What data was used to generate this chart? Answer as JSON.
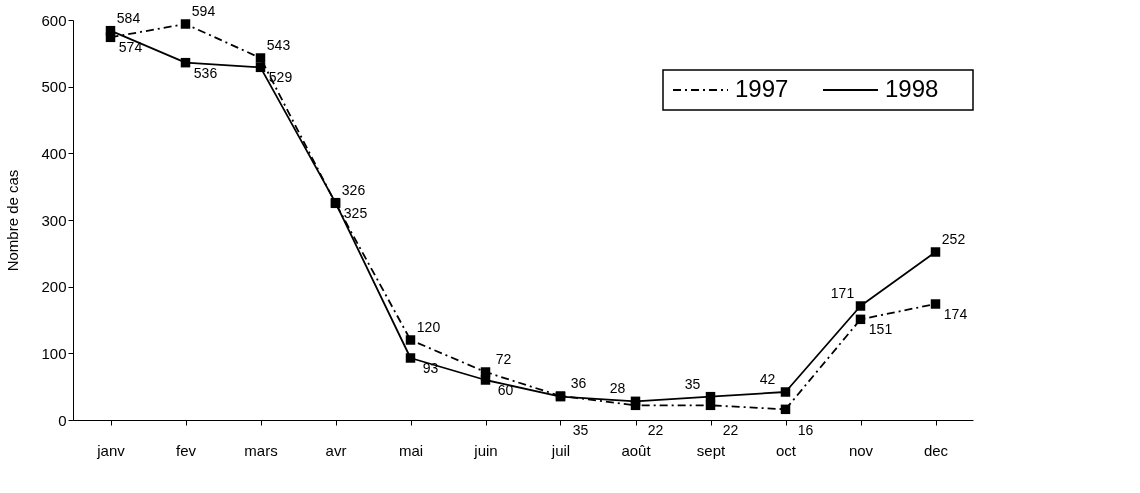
{
  "chart_data": {
    "type": "line",
    "ylabel": "Nombre de cas",
    "categories": [
      "janv",
      "fev",
      "mars",
      "avr",
      "mai",
      "juin",
      "juil",
      "août",
      "sept",
      "oct",
      "nov",
      "dec"
    ],
    "series": [
      {
        "name": "1997",
        "color": "#000000",
        "line_style": "dashed",
        "values": [
          574,
          594,
          543,
          325,
          120,
          72,
          36,
          22,
          22,
          16,
          151,
          174
        ]
      },
      {
        "name": "1998",
        "color": "#000000",
        "line_style": "solid",
        "values": [
          584,
          536,
          529,
          326,
          93,
          60,
          35,
          28,
          35,
          42,
          171,
          252
        ]
      }
    ],
    "ylim": [
      0,
      600
    ],
    "yticks": [
      0,
      100,
      200,
      300,
      400,
      500,
      600
    ],
    "marker": "square",
    "data_labels": true,
    "grid": false,
    "legend": "top right"
  }
}
